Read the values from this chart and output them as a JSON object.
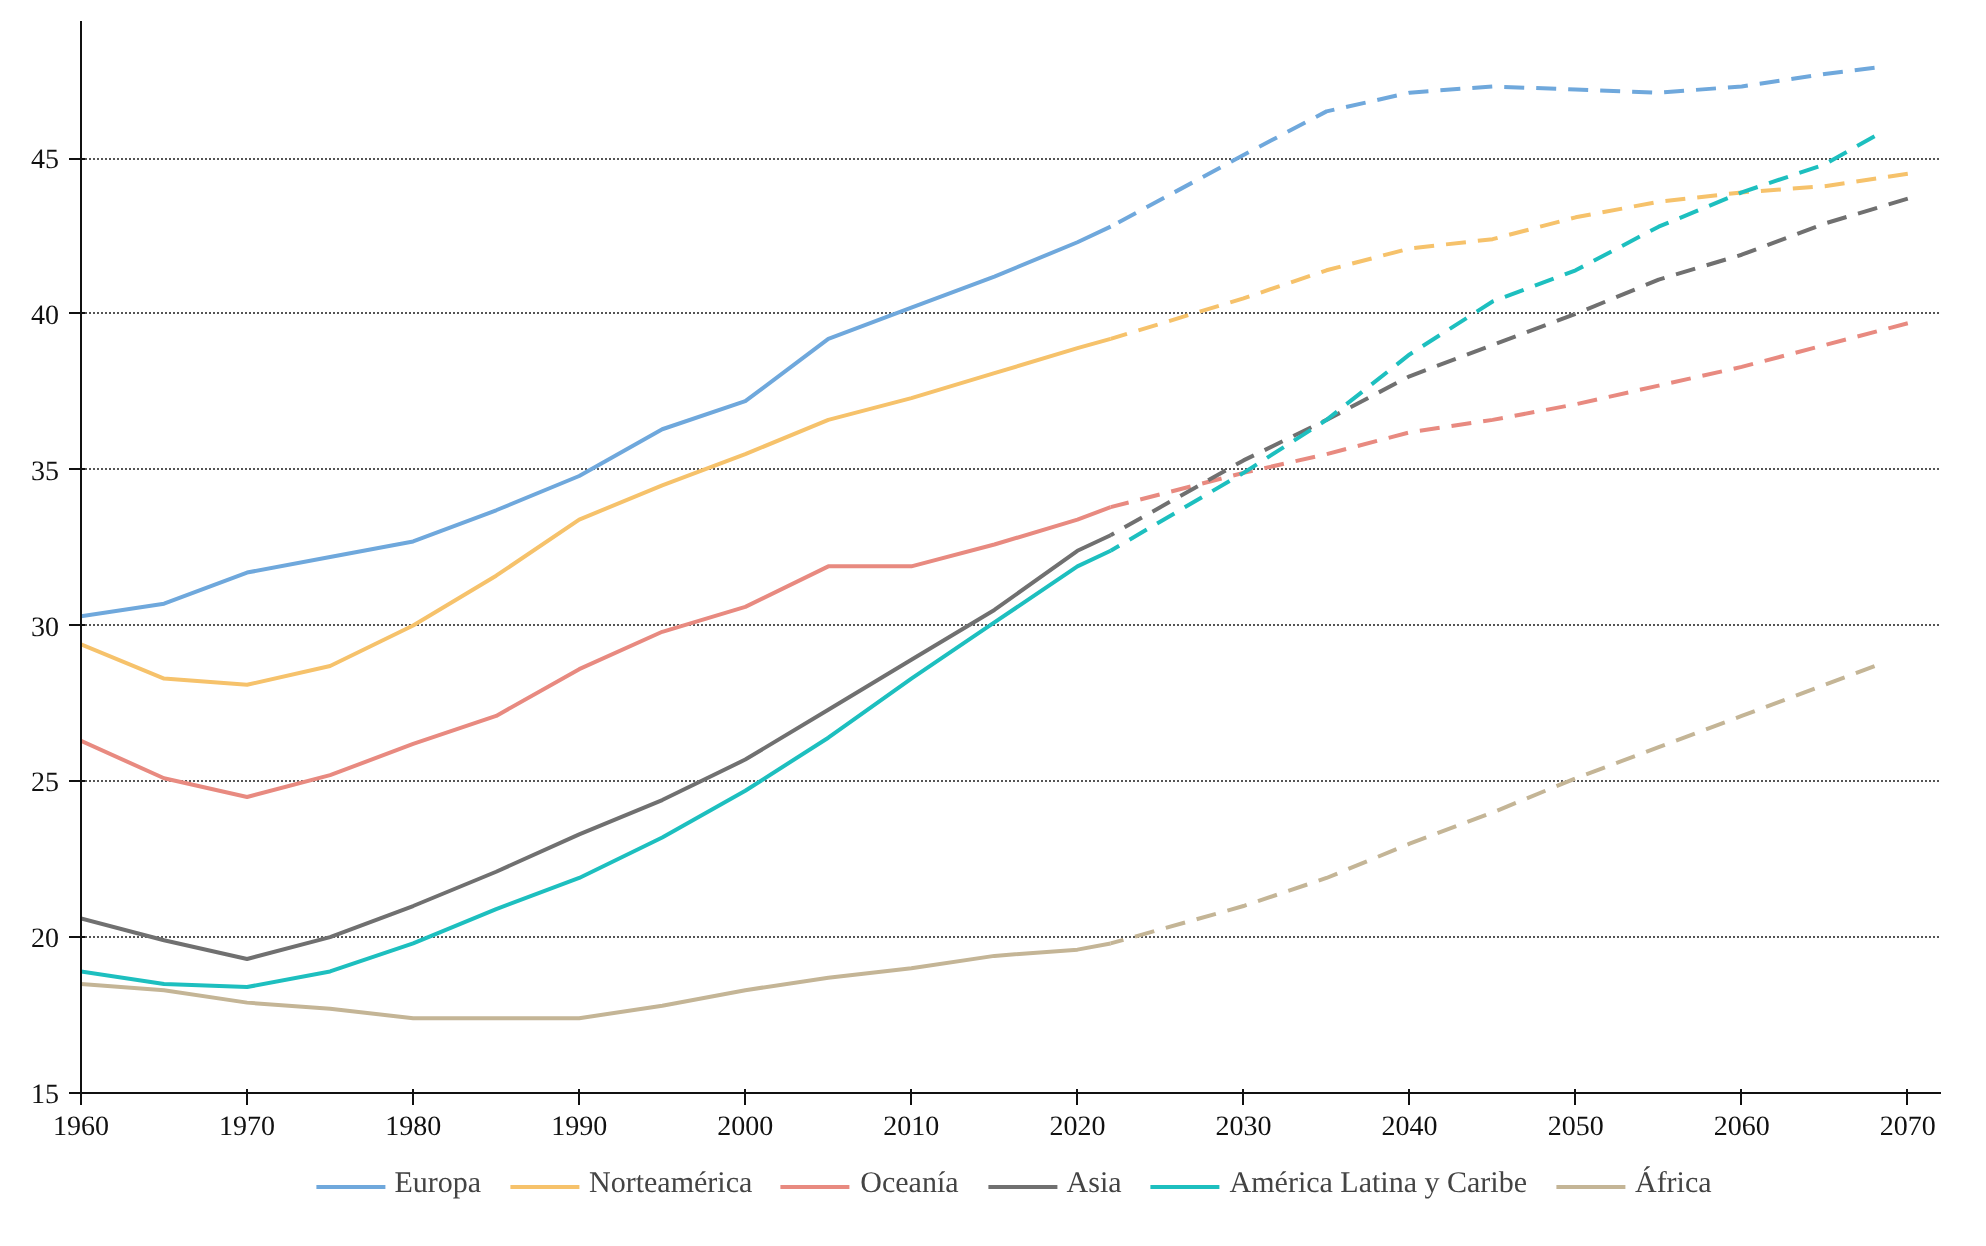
{
  "chart_data": {
    "type": "line",
    "xlim": [
      1960,
      2072
    ],
    "ylim": [
      15,
      49.4
    ],
    "xticks": [
      1960,
      1970,
      1980,
      1990,
      2000,
      2010,
      2020,
      2030,
      2040,
      2050,
      2060,
      2070
    ],
    "yticks": [
      15,
      20,
      25,
      30,
      35,
      40,
      45
    ],
    "grid": "y",
    "legend": "bottom",
    "series": [
      {
        "name": "Europa",
        "color": "#6fa8dc",
        "line_style": "solid",
        "x": [
          1960,
          1965,
          1970,
          1975,
          1980,
          1985,
          1990,
          1995,
          2000,
          2005,
          2010,
          2015,
          2020,
          2022
        ],
        "values": [
          30.3,
          30.7,
          31.7,
          32.2,
          32.7,
          33.7,
          34.8,
          36.3,
          37.2,
          39.2,
          40.2,
          41.2,
          42.3,
          42.8
        ]
      },
      {
        "name": "Norteamérica",
        "color": "#f6c26b",
        "line_style": "solid",
        "x": [
          1960,
          1965,
          1970,
          1975,
          1980,
          1985,
          1990,
          1995,
          2000,
          2005,
          2010,
          2015,
          2020,
          2022
        ],
        "values": [
          29.4,
          28.3,
          28.1,
          28.7,
          30.0,
          31.6,
          33.4,
          34.5,
          35.5,
          36.6,
          37.3,
          38.1,
          38.9,
          39.2
        ]
      },
      {
        "name": "Oceanía",
        "color": "#e88a80",
        "line_style": "solid",
        "x": [
          1960,
          1965,
          1970,
          1975,
          1980,
          1985,
          1990,
          1995,
          2000,
          2005,
          2010,
          2015,
          2020,
          2022
        ],
        "values": [
          26.3,
          25.1,
          24.5,
          25.2,
          26.2,
          27.1,
          28.6,
          29.8,
          30.6,
          31.9,
          31.9,
          32.6,
          33.4,
          33.8
        ]
      },
      {
        "name": "Asia",
        "color": "#707070",
        "line_style": "solid",
        "x": [
          1960,
          1965,
          1970,
          1975,
          1980,
          1985,
          1990,
          1995,
          2000,
          2005,
          2010,
          2015,
          2020,
          2022
        ],
        "values": [
          20.6,
          19.9,
          19.3,
          20.0,
          21.0,
          22.1,
          23.3,
          24.4,
          25.7,
          27.3,
          28.9,
          30.5,
          32.4,
          32.9
        ]
      },
      {
        "name": "América Latina y Caribe",
        "color": "#1dbfbf",
        "line_style": "solid",
        "x": [
          1960,
          1965,
          1970,
          1975,
          1980,
          1985,
          1990,
          1995,
          2000,
          2005,
          2010,
          2015,
          2020,
          2022
        ],
        "values": [
          18.9,
          18.5,
          18.4,
          18.9,
          19.8,
          20.9,
          21.9,
          23.2,
          24.7,
          26.4,
          28.3,
          30.1,
          31.9,
          32.4
        ]
      },
      {
        "name": "África",
        "color": "#c4b596",
        "line_style": "solid",
        "x": [
          1960,
          1965,
          1970,
          1975,
          1980,
          1985,
          1990,
          1995,
          2000,
          2005,
          2010,
          2015,
          2020,
          2022
        ],
        "values": [
          18.5,
          18.3,
          17.9,
          17.7,
          17.4,
          17.4,
          17.4,
          17.8,
          18.3,
          18.7,
          19.0,
          19.4,
          19.6,
          19.8
        ]
      },
      {
        "color": "#6fa8dc",
        "line_style": "dashed",
        "x": [
          2022,
          2030,
          2035,
          2040,
          2045,
          2050,
          2055,
          2060,
          2065,
          2068
        ],
        "values": [
          42.8,
          45.1,
          46.5,
          47.1,
          47.3,
          47.2,
          47.1,
          47.3,
          47.7,
          47.9
        ]
      },
      {
        "color": "#f6c26b",
        "line_style": "dashed",
        "x": [
          2022,
          2030,
          2035,
          2040,
          2045,
          2050,
          2055,
          2060,
          2065,
          2070
        ],
        "values": [
          39.2,
          40.5,
          41.4,
          42.1,
          42.4,
          43.1,
          43.6,
          43.9,
          44.1,
          44.5
        ]
      },
      {
        "color": "#e88a80",
        "line_style": "dashed",
        "x": [
          2022,
          2030,
          2035,
          2040,
          2045,
          2050,
          2055,
          2060,
          2065,
          2070
        ],
        "values": [
          33.8,
          34.9,
          35.5,
          36.2,
          36.6,
          37.1,
          37.7,
          38.3,
          39.0,
          39.7
        ]
      },
      {
        "color": "#707070",
        "line_style": "dashed",
        "x": [
          2022,
          2030,
          2035,
          2040,
          2045,
          2050,
          2055,
          2060,
          2065,
          2070
        ],
        "values": [
          32.9,
          35.3,
          36.6,
          38.0,
          39.0,
          40.0,
          41.1,
          41.9,
          42.9,
          43.7
        ]
      },
      {
        "color": "#1dbfbf",
        "line_style": "dashed",
        "x": [
          2022,
          2030,
          2035,
          2040,
          2045,
          2050,
          2055,
          2060,
          2065,
          2068
        ],
        "values": [
          32.4,
          34.9,
          36.6,
          38.7,
          40.4,
          41.4,
          42.8,
          43.9,
          44.8,
          45.7
        ]
      },
      {
        "color": "#c4b596",
        "line_style": "dashed",
        "x": [
          2022,
          2030,
          2035,
          2040,
          2045,
          2050,
          2055,
          2060,
          2065,
          2068
        ],
        "values": [
          19.8,
          21.0,
          21.9,
          23.0,
          24.0,
          25.1,
          26.1,
          27.1,
          28.1,
          28.7
        ]
      }
    ]
  }
}
